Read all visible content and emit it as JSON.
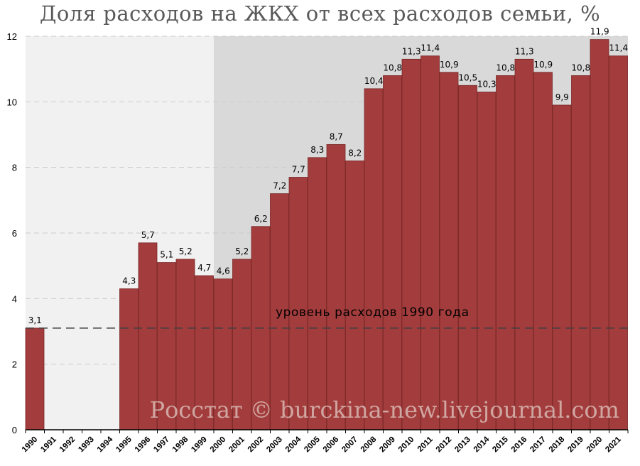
{
  "chart_data": {
    "type": "bar",
    "title": "Доля расходов на ЖКХ от всех расходов семьи, %",
    "categories": [
      "1990",
      "1991",
      "1992",
      "1993",
      "1994",
      "1995",
      "1996",
      "1997",
      "1998",
      "1999",
      "2000",
      "2001",
      "2002",
      "2003",
      "2004",
      "2005",
      "2006",
      "2007",
      "2008",
      "2009",
      "2010",
      "2011",
      "2012",
      "2013",
      "2014",
      "2015",
      "2016",
      "2017",
      "2018",
      "2019",
      "2020",
      "2021"
    ],
    "values": [
      3.1,
      null,
      null,
      null,
      null,
      4.3,
      5.7,
      5.1,
      5.2,
      4.7,
      4.6,
      5.2,
      6.2,
      7.2,
      7.7,
      8.3,
      8.7,
      8.2,
      10.4,
      10.8,
      11.3,
      11.4,
      10.9,
      10.5,
      10.3,
      10.8,
      11.3,
      10.9,
      9.9,
      10.8,
      11.9,
      11.4
    ],
    "labels": [
      "3,1",
      "",
      "",
      "",
      "",
      "4,3",
      "5,7",
      "5,1",
      "5,2",
      "4,7",
      "4,6",
      "5,2",
      "6,2",
      "7,2",
      "7,7",
      "8,3",
      "8,7",
      "8,2",
      "10,4",
      "10,8",
      "11,3",
      "11,4",
      "10,9",
      "10,5",
      "10,3",
      "10,8",
      "11,3",
      "10,9",
      "9,9",
      "10,8",
      "11,9",
      "11,4"
    ],
    "ylim": [
      0,
      12
    ],
    "yticks": [
      "0",
      "2",
      "4",
      "6",
      "8",
      "10",
      "12"
    ],
    "grid": true,
    "reference_line": {
      "value": 3.1,
      "label": "уровень расходов 1990 года"
    },
    "shaded_period_start": "2000",
    "watermark": "Росстат © burckina-new.livejournal.com",
    "colors": {
      "bar": "#a33c3c",
      "bar_edge": "#7a2626",
      "bg_early": "#f1f1f1",
      "bg_late": "#d9d9d9",
      "grid": "#cccccc",
      "reference_line": "#404040"
    }
  }
}
